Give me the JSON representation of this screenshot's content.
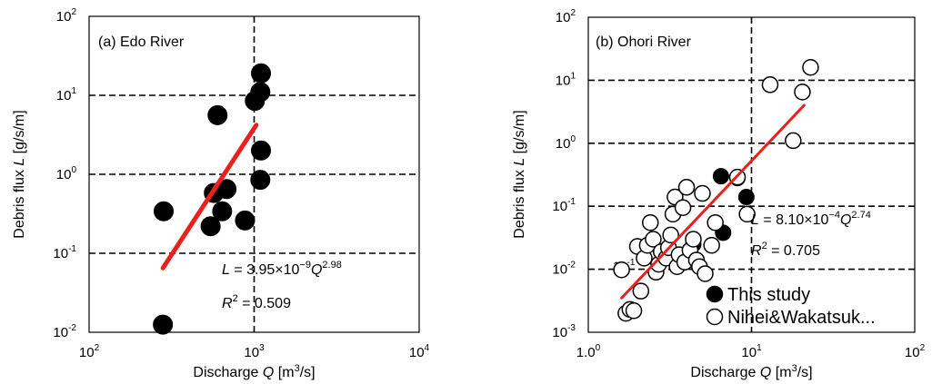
{
  "chart_data": [
    {
      "type": "scatter",
      "panel_label": "(a) Edo River",
      "xlabel": {
        "pre": "Discharge ",
        "var": "Q",
        "post": " [m",
        "sup": "3",
        "tail": "/s]"
      },
      "ylabel": {
        "pre": "Debris flux ",
        "var": "L",
        "post": "  [g/s/m]"
      },
      "xscale": "log",
      "yscale": "log",
      "xlim": [
        100,
        10000
      ],
      "ylim": [
        0.01,
        100
      ],
      "x_ticks": [
        {
          "b": "10",
          "e": "2"
        },
        {
          "b": "10",
          "e": "3"
        },
        {
          "b": "10",
          "e": "4"
        }
      ],
      "y_ticks": [
        {
          "b": "10",
          "e": "-2"
        },
        {
          "b": "10",
          "e": "-1"
        },
        {
          "b": "10",
          "e": "0"
        },
        {
          "b": "10",
          "e": "1"
        },
        {
          "b": "10",
          "e": "2"
        }
      ],
      "grid_x": [
        1000
      ],
      "grid_y": [
        0.1,
        1,
        10
      ],
      "equation": {
        "var": "L",
        "eq": " = 3.95×10",
        "exp1": "−9",
        "var2": "Q",
        "exp2": "2.98"
      },
      "r2": {
        "var": "R",
        "sup": "2",
        "rest": " = 0.509"
      },
      "fit_line": {
        "x": [
          280,
          1030
        ],
        "y": [
          0.065,
          4.2
        ],
        "color": "#e8211d"
      },
      "series": [
        {
          "marker": "filled",
          "points": [
            [
              280,
              0.0125
            ],
            [
              283,
              0.34
            ],
            [
              600,
              5.6
            ],
            [
              570,
              0.58
            ],
            [
              545,
              0.22
            ],
            [
              640,
              0.34
            ],
            [
              680,
              0.65
            ],
            [
              880,
              0.26
            ],
            [
              1010,
              8.5
            ],
            [
              1090,
              11.0
            ],
            [
              1100,
              19.0
            ],
            [
              1100,
              2.0
            ],
            [
              1090,
              0.85
            ]
          ]
        }
      ]
    },
    {
      "type": "scatter",
      "panel_label": "(b) Ohori River",
      "xlabel": {
        "pre": "Discharge ",
        "var": "Q",
        "post": " [m",
        "sup": "3",
        "tail": "/s]"
      },
      "ylabel": {
        "pre": "Debris flux ",
        "var": "L",
        "post": " [g/s/m]"
      },
      "xscale": "log",
      "yscale": "log",
      "xlim": [
        1,
        100
      ],
      "ylim": [
        0.001,
        100
      ],
      "x_ticks": [
        {
          "b": "1.0",
          "e": "0"
        },
        {
          "b": "10",
          "e": "1"
        },
        {
          "b": "10",
          "e": "2"
        }
      ],
      "y_ticks": [
        {
          "b": "10",
          "e": "-3"
        },
        {
          "b": "10",
          "e": "-2"
        },
        {
          "b": "10",
          "e": "-1"
        },
        {
          "b": "10",
          "e": "0"
        },
        {
          "b": "10",
          "e": "1"
        },
        {
          "b": "10",
          "e": "2"
        }
      ],
      "grid_x": [
        10
      ],
      "grid_y": [
        0.01,
        0.1,
        1,
        10
      ],
      "equation": {
        "var": "L",
        "eq": " = 8.10×10",
        "exp1": "−4",
        "var2": "Q",
        "exp2": "2.74"
      },
      "r2": {
        "var": "R",
        "sup": "2",
        "rest": " = 0.705"
      },
      "stray_label": {
        "b": "10",
        "e": "-1"
      },
      "fit_line": {
        "x": [
          1.6,
          21
        ],
        "y": [
          0.0035,
          4.0
        ],
        "color": "#e8211d"
      },
      "legend": [
        {
          "marker": "filled",
          "label": "This study"
        },
        {
          "marker": "open",
          "label": "Nihei&Wakatsuk..."
        }
      ],
      "series": [
        {
          "name": "This study",
          "marker": "filled",
          "points": [
            [
              6.5,
              0.3
            ],
            [
              8.2,
              0.28
            ],
            [
              9.3,
              0.14
            ],
            [
              4.4,
              0.025
            ],
            [
              6.7,
              0.038
            ]
          ]
        },
        {
          "name": "Nihei&Wakatsuk...",
          "marker": "open",
          "points": [
            [
              1.6,
              0.0098
            ],
            [
              1.7,
              0.002
            ],
            [
              1.8,
              0.0023
            ],
            [
              1.9,
              0.0022
            ],
            [
              2.0,
              0.023
            ],
            [
              2.1,
              0.0045
            ],
            [
              2.2,
              0.015
            ],
            [
              2.3,
              0.024
            ],
            [
              2.4,
              0.055
            ],
            [
              2.5,
              0.03
            ],
            [
              2.6,
              0.009
            ],
            [
              2.7,
              0.012
            ],
            [
              2.8,
              0.019
            ],
            [
              3.0,
              0.015
            ],
            [
              3.1,
              0.022
            ],
            [
              3.2,
              0.035
            ],
            [
              3.3,
              0.075
            ],
            [
              3.4,
              0.14
            ],
            [
              3.5,
              0.011
            ],
            [
              3.6,
              0.017
            ],
            [
              3.8,
              0.095
            ],
            [
              3.9,
              0.013
            ],
            [
              4.0,
              0.2
            ],
            [
              4.2,
              0.02
            ],
            [
              4.4,
              0.03
            ],
            [
              4.6,
              0.014
            ],
            [
              4.8,
              0.011
            ],
            [
              5.0,
              0.16
            ],
            [
              5.2,
              0.0085
            ],
            [
              5.7,
              0.024
            ],
            [
              6.0,
              0.055
            ],
            [
              8.2,
              0.29
            ],
            [
              9.4,
              0.075
            ],
            [
              13.0,
              8.5
            ],
            [
              18.0,
              1.1
            ],
            [
              20.5,
              6.5
            ],
            [
              23.0,
              16.0
            ]
          ]
        }
      ]
    }
  ]
}
